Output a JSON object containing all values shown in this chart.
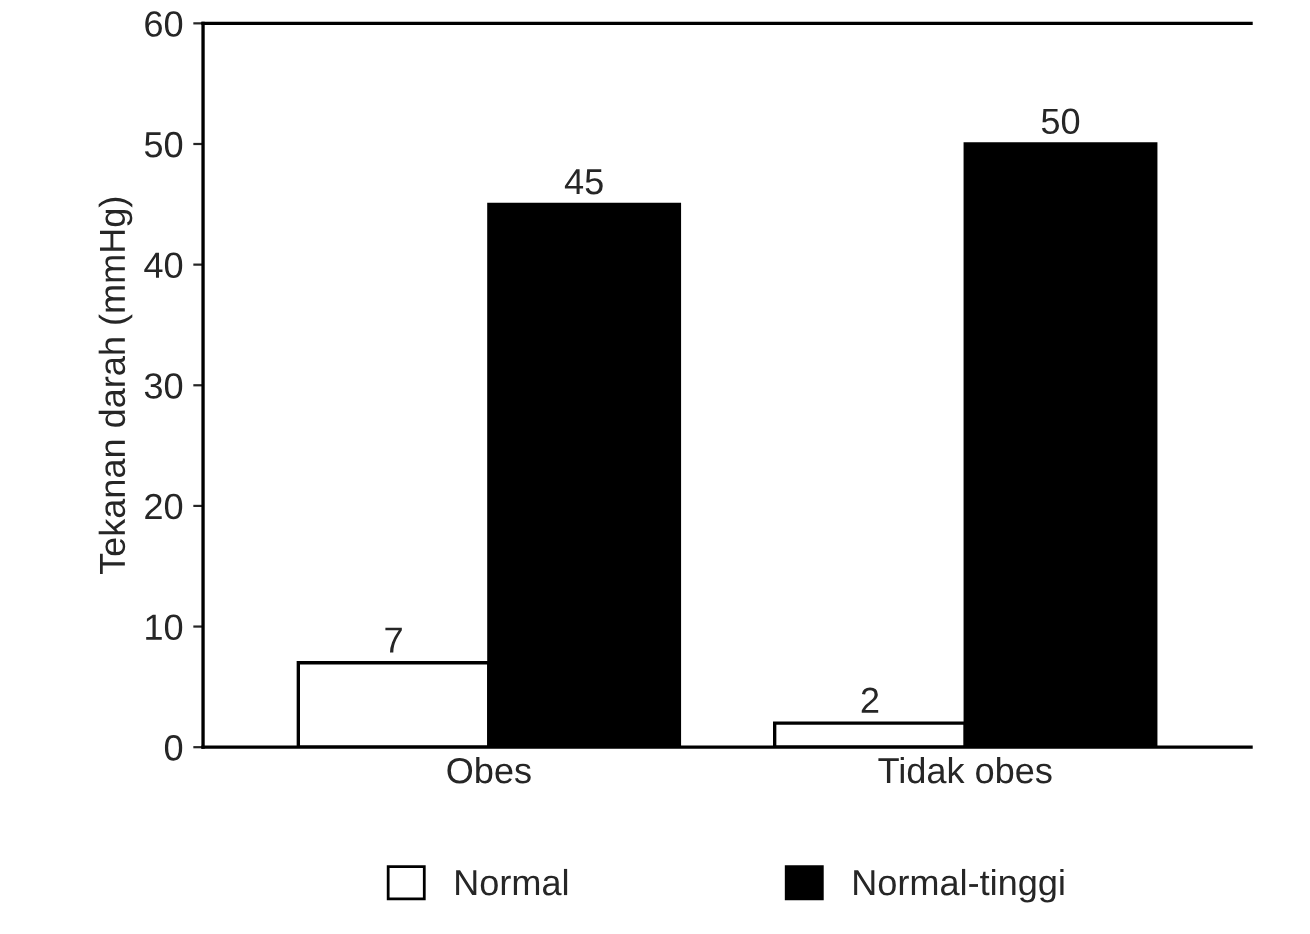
{
  "chart_data": {
    "type": "bar",
    "ylabel": "Tekanan darah (mmHg)",
    "categories": [
      "Obes",
      "Tidak obes"
    ],
    "series": [
      {
        "name": "Normal",
        "color": "#ffffff",
        "values": [
          7,
          2
        ]
      },
      {
        "name": "Normal-tinggi",
        "color": "#000000",
        "values": [
          45,
          50
        ]
      }
    ],
    "ylim": [
      0,
      60
    ],
    "yticks": [
      0,
      10,
      20,
      30,
      40,
      50,
      60
    ],
    "data_labels": true,
    "legend": "bottom",
    "grid": false
  }
}
